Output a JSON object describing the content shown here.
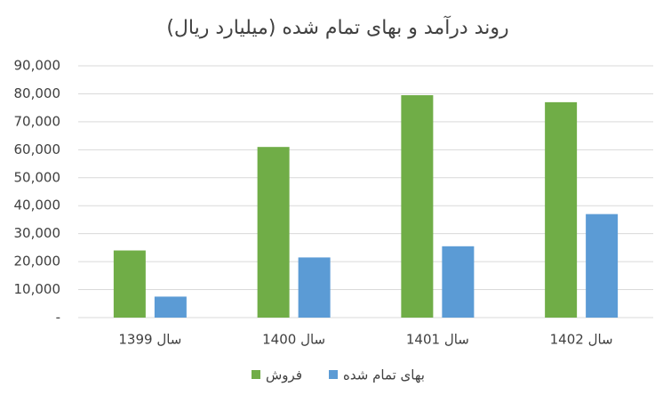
{
  "chart_data": {
    "type": "bar",
    "title": "روند درآمد و بهای تمام شده (میلیارد ریال)",
    "categories": [
      "سال 1399",
      "سال 1400",
      "سال 1401",
      "سال 1402"
    ],
    "series": [
      {
        "name": "فروش",
        "color": "#70ad47",
        "values": [
          24000,
          61000,
          79500,
          77000
        ]
      },
      {
        "name": "بهای تمام شده",
        "color": "#5b9bd5",
        "values": [
          7500,
          21500,
          25500,
          37000
        ]
      }
    ],
    "ylim": [
      0,
      90000
    ],
    "yticks": [
      {
        "value": 0,
        "label": "-"
      },
      {
        "value": 10000,
        "label": "10,000"
      },
      {
        "value": 20000,
        "label": "20,000"
      },
      {
        "value": 30000,
        "label": "30,000"
      },
      {
        "value": 40000,
        "label": "40,000"
      },
      {
        "value": 50000,
        "label": "50,000"
      },
      {
        "value": 60000,
        "label": "60,000"
      },
      {
        "value": 70000,
        "label": "70,000"
      },
      {
        "value": 80000,
        "label": "80,000"
      },
      {
        "value": 90000,
        "label": "90,000"
      }
    ],
    "grid": true,
    "legend": "bottom"
  }
}
